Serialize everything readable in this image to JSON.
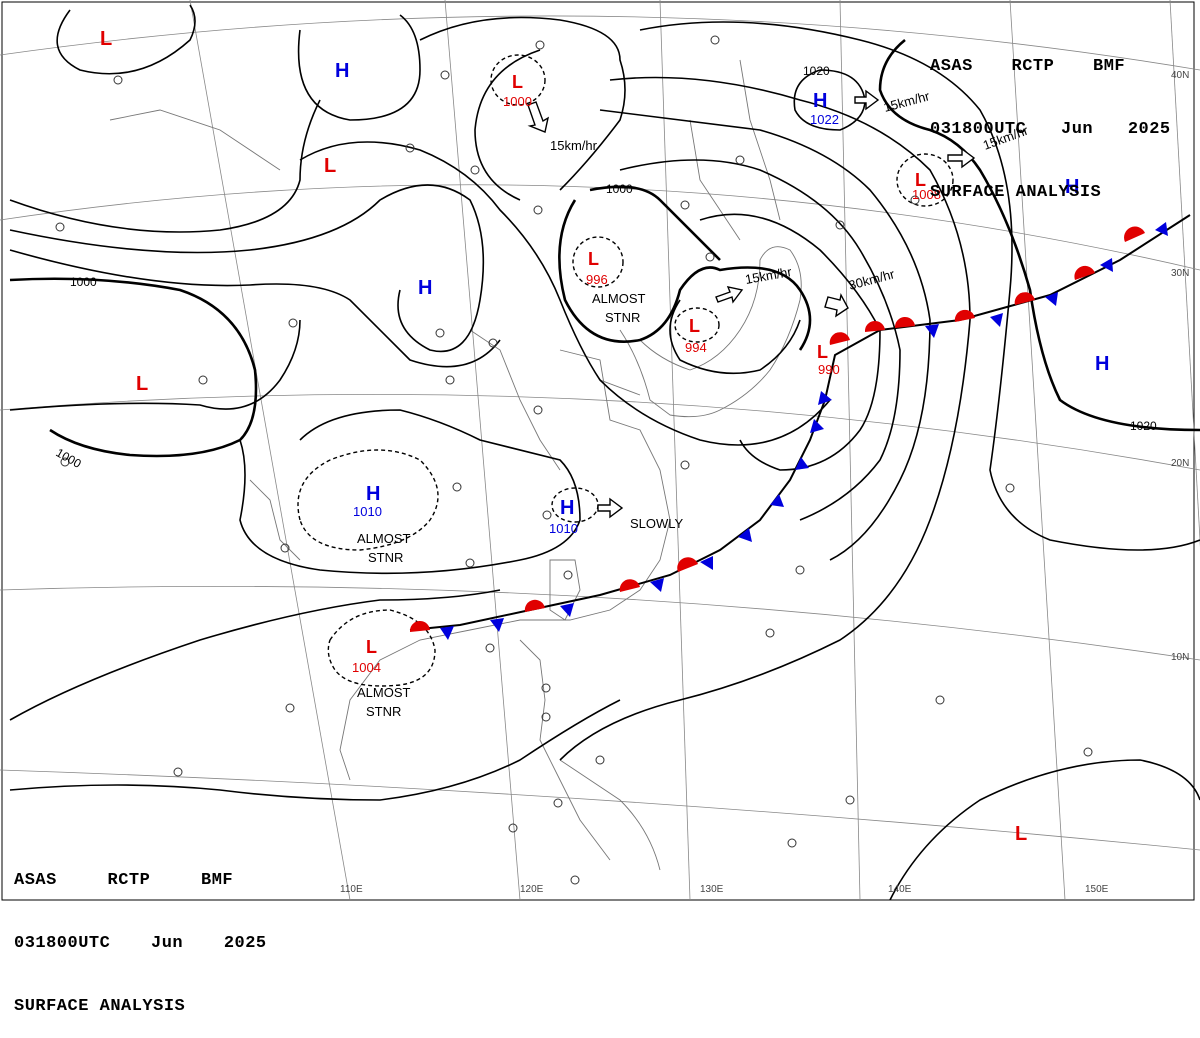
{
  "header": {
    "line1": "ASAS RCTP BMF",
    "line2": "031800UTC Jun 2025",
    "line3": "SURFACE ANALYSIS"
  },
  "colors": {
    "low": "#e00000",
    "high": "#0000dd",
    "warm_front": "#e00000",
    "cold_front": "#0000dd",
    "isobar": "#000000"
  },
  "lat_labels": [
    "40N",
    "30N",
    "20N",
    "10N"
  ],
  "lon_labels": [
    "110E",
    "120E",
    "130E",
    "140E",
    "150E"
  ],
  "isobar_labels": [
    "1000",
    "1000",
    "1000",
    "1020",
    "1020"
  ],
  "lows": [
    {
      "symbol": "L",
      "pressure": "1000"
    },
    {
      "symbol": "L",
      "pressure": "996"
    },
    {
      "symbol": "L",
      "pressure": "994"
    },
    {
      "symbol": "L",
      "pressure": "990"
    },
    {
      "symbol": "L",
      "pressure": "1008"
    },
    {
      "symbol": "L",
      "pressure": "1004"
    }
  ],
  "highs": [
    {
      "symbol": "H",
      "pressure": "1022"
    },
    {
      "symbol": "H",
      "pressure": "1010"
    },
    {
      "symbol": "H",
      "pressure": "1010"
    }
  ],
  "bare_lows": [
    "L",
    "L",
    "L",
    "L",
    "L"
  ],
  "bare_highs": [
    "H",
    "H",
    "H",
    "H"
  ],
  "motions": [
    "15km/hr",
    "15km/hr",
    "15km/hr",
    "15km/hr",
    "30km/hr",
    "SLOWLY"
  ],
  "notes": [
    "ALMOST",
    "STNR",
    "ALMOST",
    "STNR",
    "ALMOST",
    "STNR"
  ]
}
